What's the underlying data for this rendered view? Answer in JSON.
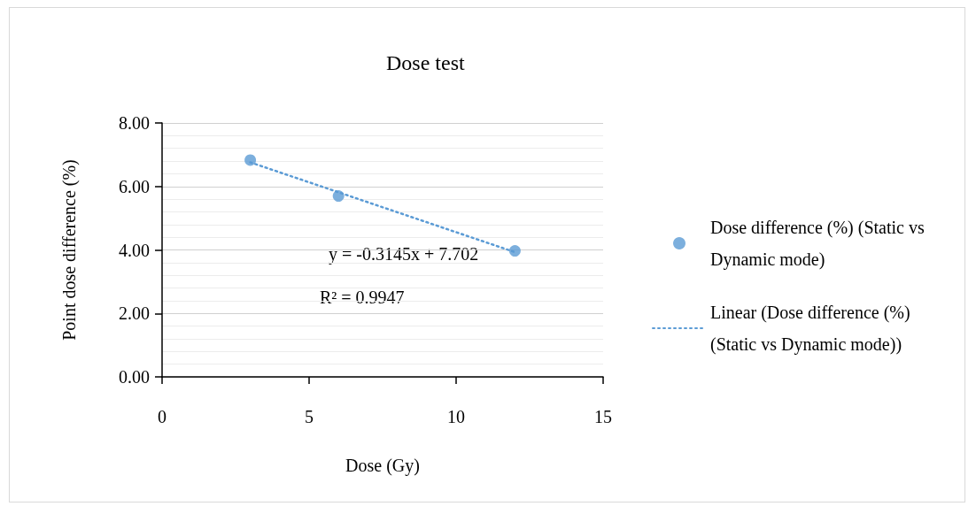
{
  "chart_data": {
    "type": "scatter",
    "title": "Dose test",
    "xlabel": "Dose (Gy)",
    "ylabel": "Point dose difference (%)",
    "series": [
      {
        "name": "Dose difference (%) (Static vs Dynamic mode)",
        "color": "#5b9bd5",
        "x": [
          3,
          6,
          12
        ],
        "values": [
          6.83,
          5.7,
          3.97
        ],
        "marker": "circle"
      },
      {
        "name": "Linear (Dose difference (%) (Static vs Dynamic mode))",
        "type": "line",
        "color": "#5b9bd5",
        "x": [
          3,
          12
        ],
        "values": [
          6.76,
          3.93
        ],
        "line_style": "dotted",
        "marker": "none"
      }
    ],
    "annotations": [
      "y = -0.3145x + 7.702",
      "R² = 0.9947"
    ],
    "xlim": [
      0,
      15
    ],
    "xticks": [
      0,
      5,
      10,
      15
    ],
    "ylim": [
      0,
      8
    ],
    "yticks": [
      {
        "value": 0,
        "label": "0.00"
      },
      {
        "value": 2,
        "label": "2.00"
      },
      {
        "value": 4,
        "label": "4.00"
      },
      {
        "value": 6,
        "label": "6.00"
      },
      {
        "value": 8,
        "label": "8.00"
      }
    ],
    "grid": "y",
    "legend": "right"
  }
}
